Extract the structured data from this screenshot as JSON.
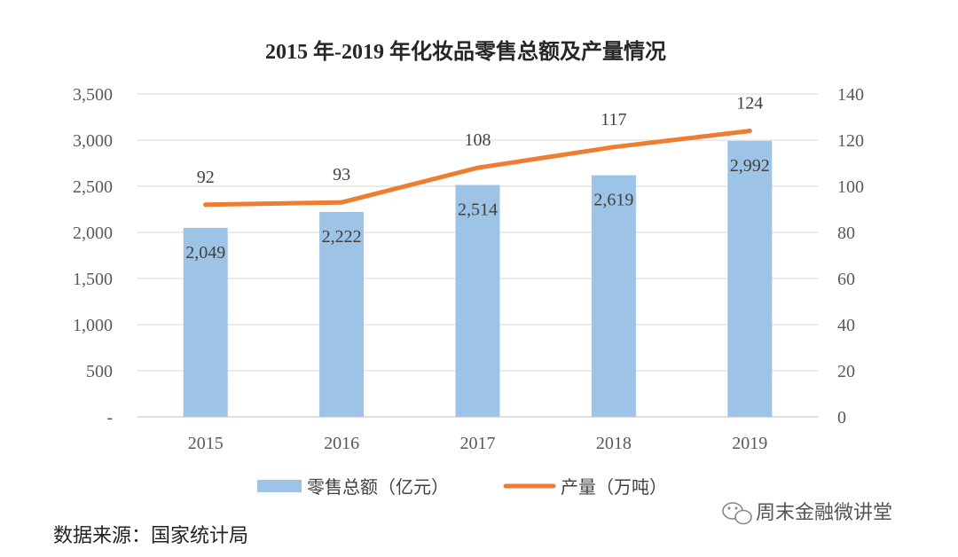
{
  "chart_data": {
    "type": "bar",
    "title": "2015 年-2019 年化妆品零售总额及产量情况",
    "categories": [
      "2015",
      "2016",
      "2017",
      "2018",
      "2019"
    ],
    "series": [
      {
        "name": "零售总额（亿元）",
        "type": "bar",
        "axis": "left",
        "values": [
          2049,
          2222,
          2514,
          2619,
          2992
        ],
        "labels": [
          "2,049",
          "2,222",
          "2,514",
          "2,619",
          "2,992"
        ]
      },
      {
        "name": "产量（万吨）",
        "type": "line",
        "axis": "right",
        "values": [
          92,
          93,
          108,
          117,
          124
        ],
        "labels": [
          "92",
          "93",
          "108",
          "117",
          "124"
        ]
      }
    ],
    "ylim": [
      0,
      3500
    ],
    "y_ticks": [
      "-",
      "500",
      "1,000",
      "1,500",
      "2,000",
      "2,500",
      "3,000",
      "3,500"
    ],
    "y2lim": [
      0,
      140
    ],
    "y2_ticks": [
      "0",
      "20",
      "40",
      "60",
      "80",
      "100",
      "120",
      "140"
    ],
    "grid": true,
    "legend_position": "bottom",
    "colors": {
      "bar": "#9dc3e6",
      "line": "#ed7d31",
      "grid": "#d9d9d9"
    }
  },
  "source_note": "数据来源：国家统计局",
  "watermark": "周末金融微讲堂",
  "watermark_icon": "wechat-icon"
}
